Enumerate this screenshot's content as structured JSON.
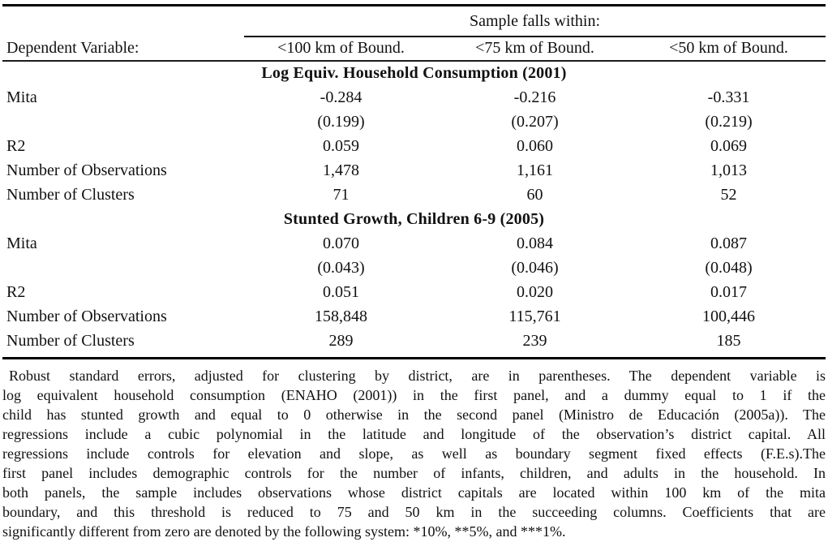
{
  "table": {
    "span_header": "Sample falls within:",
    "columns": {
      "label": "Dependent Variable:",
      "col1": "<100 km of Bound.",
      "col2": "<75 km of Bound.",
      "col3": "<50 km of Bound."
    },
    "panels": [
      {
        "title": "Log Equiv. Household Consumption (2001)",
        "rows": [
          {
            "label": "Mita",
            "values": [
              "-0.284",
              "-0.216",
              "-0.331"
            ]
          },
          {
            "label": "",
            "values": [
              "(0.199)",
              "(0.207)",
              "(0.219)"
            ]
          },
          {
            "label": "R2",
            "values": [
              "0.059",
              "0.060",
              "0.069"
            ]
          },
          {
            "label": "Number of Observations",
            "values": [
              "1,478",
              "1,161",
              "1,013"
            ]
          },
          {
            "label": "Number of Clusters",
            "values": [
              "71",
              "60",
              "52"
            ]
          }
        ]
      },
      {
        "title": "Stunted Growth, Children 6-9 (2005)",
        "rows": [
          {
            "label": "Mita",
            "values": [
              "0.070",
              "0.084",
              "0.087"
            ]
          },
          {
            "label": "",
            "values": [
              "(0.043)",
              "(0.046)",
              "(0.048)"
            ]
          },
          {
            "label": "R2",
            "values": [
              "0.051",
              "0.020",
              "0.017"
            ]
          },
          {
            "label": "Number of Observations",
            "values": [
              "158,848",
              "115,761",
              "100,446"
            ]
          },
          {
            "label": "Number of Clusters",
            "values": [
              "289",
              "239",
              "185"
            ]
          }
        ]
      }
    ]
  },
  "footnote_lines": [
    "Robust standard errors, adjusted for clustering by district, are in parentheses.  The dependent variable is",
    "log equivalent household consumption (ENAHO (2001)) in the first panel, and a dummy equal to 1 if the",
    "child has stunted growth and equal to 0 otherwise in the second panel (Ministro de Educación (2005a)).  The",
    "regressions include a cubic polynomial in the latitude and longitude of the observation’s district capital.  All",
    "regressions include controls for elevation and slope, as well as boundary segment fixed effects (F.E.s).The",
    "first panel includes demographic controls for the number of infants, children, and adults in the household.  In",
    "both panels, the sample includes observations whose district capitals are located within 100 km of the mita",
    "boundary, and this threshold is reduced to 75 and 50 km in the succeeding columns.  Coefficients that are",
    "significantly different from zero are denoted by the following system: *10%, **5%, and ***1%."
  ],
  "colors": {
    "text": "#111111",
    "rule": "#000000",
    "background": "#ffffff"
  }
}
